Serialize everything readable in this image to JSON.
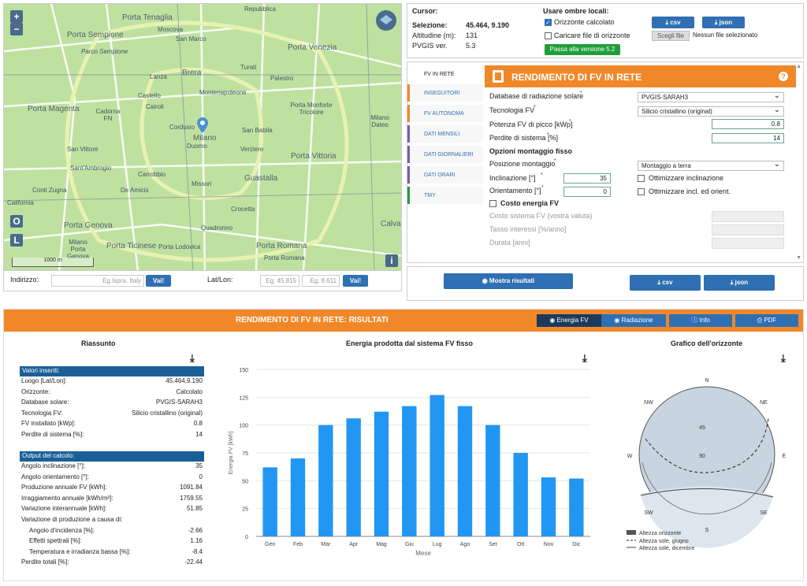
{
  "map": {
    "labels": [
      {
        "t": "Porta Tenaglia",
        "c": "big"
      },
      {
        "t": "Repubblica"
      },
      {
        "t": "Porta Sempione",
        "c": "big"
      },
      {
        "t": "Moscova"
      },
      {
        "t": "San Marco"
      },
      {
        "t": "Porta Venezia",
        "c": "big"
      },
      {
        "t": "Parco Sempione"
      },
      {
        "t": "Brera",
        "c": "big"
      },
      {
        "t": "Turati"
      },
      {
        "t": "Palestro"
      },
      {
        "t": "Lanza"
      },
      {
        "t": "Castello"
      },
      {
        "t": "Montenapoleone"
      },
      {
        "t": "Porta Magenta",
        "c": "big"
      },
      {
        "t": "Cairoli"
      },
      {
        "t": "Cadorna FN"
      },
      {
        "t": "Porta Monforte Tricolore"
      },
      {
        "t": "Milano Dateo"
      },
      {
        "t": "Cordusio"
      },
      {
        "t": "Milano",
        "c": "big"
      },
      {
        "t": "Duomo"
      },
      {
        "t": "San Babila"
      },
      {
        "t": "San Vittore"
      },
      {
        "t": "Verziere"
      },
      {
        "t": "Porta Vittoria",
        "c": "big"
      },
      {
        "t": "Sant'Ambrogio"
      },
      {
        "t": "Carrobbio"
      },
      {
        "t": "Missori"
      },
      {
        "t": "Guastalla",
        "c": "big"
      },
      {
        "t": "Conti Zugna"
      },
      {
        "t": "De Amicis"
      },
      {
        "t": "California"
      },
      {
        "t": "Crocetta"
      },
      {
        "t": "Porta Genova",
        "c": "big"
      },
      {
        "t": "Quadronno"
      },
      {
        "t": "Calvai",
        "c": "big"
      },
      {
        "t": "Milano Porta Genova"
      },
      {
        "t": "Porta Ticinese",
        "c": "big"
      },
      {
        "t": "Porta Lodovica"
      },
      {
        "t": "Porta Romana",
        "c": "big"
      },
      {
        "t": "Porta Romana"
      }
    ],
    "scale": "1000 m",
    "btn_zoom_in": "+",
    "btn_zoom_out": "−",
    "btn_o": "O",
    "btn_l": "L",
    "btn_info": "i"
  },
  "address": {
    "label": "Indirizzo:",
    "placeholder": "Eg.Ispra, Italy",
    "go": "Vai!",
    "latlon_label": "Lat/Lon:",
    "lat_ph": "Eg. 45.815",
    "lon_ph": "Eg. 8.611",
    "go2": "Vai!"
  },
  "cursor": {
    "title": "Cursor:",
    "sel_label": "Selezione:",
    "sel_val": "45.464, 9.190",
    "alt_label": "Altitudine (m):",
    "alt_val": "131",
    "ver_label": "PVGIS ver.",
    "ver_val": "5.3"
  },
  "shadows": {
    "title": "Usare ombre locali:",
    "opt1": "Orizzonte calcolato",
    "opt2": "Caricare file di orizzonte",
    "csv": "csv",
    "json": "json",
    "choose": "Scegli file",
    "nofile": "Nessun file selezionato",
    "switch": "Passa alla versione 5.2"
  },
  "tabs": [
    "FV IN RETE",
    "INSEGUITORI",
    "FV AUTONOMA",
    "DATI MENSILI",
    "DATI GIORNALIERI",
    "DATI ORARI",
    "TMY"
  ],
  "calc": {
    "title": "RENDIMENTO DI FV IN RETE",
    "help": "?",
    "db_label": "Database di radiazione solare",
    "db_val": "PVGIS-SARAH3",
    "tech_label": "Tecnologia FV",
    "tech_val": "Silicio cristallino (original)",
    "peak_label": "Potenza FV di picco [kWp]",
    "peak_val": "0.8",
    "loss_label": "Perdite di sistema [%]",
    "loss_val": "14",
    "mount_title": "Opzioni montaggio fisso",
    "pos_label": "Posizione montaggio",
    "pos_val": "Montaggio a terra",
    "incl_label": "Inclinazione [°]",
    "incl_val": "35",
    "opt_incl": "Ottimizzare inclinazione",
    "orient_label": "Orientamento [°]",
    "orient_val": "0",
    "opt_both": "Ottimizzare incl. ed orient.",
    "cost_label": "Costo energia FV",
    "cost1": "Costo sistema FV (vostra valuta)",
    "cost2": "Tasso interessi [%/anno]",
    "cost3": "Durata [anni]"
  },
  "actions": {
    "show": "Mostra risultati",
    "csv": "csv",
    "json": "json"
  },
  "results": {
    "title": "RENDIMENTO DI FV IN RETE: RISULTATI",
    "btn_energy": "Energia FV",
    "btn_rad": "Radiazione",
    "btn_info": "Info",
    "btn_pdf": "PDF",
    "summary_title": "Riassunto",
    "chart_title": "Energia prodotta dal sistema FV fisso",
    "horizon_title": "Grafico dell'orizzonte",
    "inputs_hdr": "Valori inseriti:",
    "inputs": [
      {
        "k": "Luogo [Lat/Lon]:",
        "v": "45.464,9.190"
      },
      {
        "k": "Orizzonte:",
        "v": "Calcolato"
      },
      {
        "k": "Database solare:",
        "v": "PVGIS-SARAH3"
      },
      {
        "k": "Tecnologia FV:",
        "v": "Silicio cristallino (original)"
      },
      {
        "k": "FV installato [kWp]:",
        "v": "0.8"
      },
      {
        "k": "Perdite di sistema [%]:",
        "v": "14"
      }
    ],
    "outputs_hdr": "Output del calcolo:",
    "outputs": [
      {
        "k": "Angolo inclinazione [°]:",
        "v": "35"
      },
      {
        "k": "Angolo orientamento [°]:",
        "v": "0"
      },
      {
        "k": "Produzione annuale FV [kWh]:",
        "v": "1091.84"
      },
      {
        "k": "Irraggiamento annuale [kWh/m²]:",
        "v": "1759.55"
      },
      {
        "k": "Variazione interannuale [kWh]:",
        "v": "51.85"
      },
      {
        "k": "Variazione di produzione a causa di:",
        "v": ""
      },
      {
        "k": "Angolo d'incidenza [%]:",
        "v": "-2.66",
        "indent": true
      },
      {
        "k": "Effetti spettrali [%]:",
        "v": "1.16",
        "indent": true
      },
      {
        "k": "Temperatura e irradianza bassa [%]:",
        "v": "-8.4",
        "indent": true
      },
      {
        "k": "Perdite totali [%]:",
        "v": "-22.44"
      }
    ],
    "horizon_legend": [
      "Altezza orizzonte",
      "Altezza sole, giugno",
      "Altezza sole, dicembre"
    ],
    "compass": {
      "N": "N",
      "NE": "NE",
      "E": "E",
      "SE": "SE",
      "S": "S",
      "SW": "SW",
      "W": "W",
      "NW": "NW",
      "r45": "45",
      "r90": "90"
    }
  },
  "chart_data": {
    "type": "bar",
    "title": "Energia prodotta dal sistema FV fisso",
    "xlabel": "Mese",
    "ylabel": "Energia FV [kWh]",
    "categories": [
      "Gen",
      "Feb",
      "Mar",
      "Apr",
      "Mag",
      "Giu",
      "Lug",
      "Ago",
      "Set",
      "Ott",
      "Nov",
      "Dic"
    ],
    "values": [
      62,
      70,
      100,
      106,
      112,
      117,
      127,
      117,
      100,
      75,
      53,
      52
    ],
    "ylim": [
      0,
      150
    ],
    "yticks": [
      0,
      25,
      50,
      75,
      100,
      125,
      150
    ],
    "color": "#2196f3"
  },
  "colors": {
    "orange": "#f0882a",
    "blue": "#2f6fb3",
    "darkblue": "#1b5f99",
    "green": "#1f9e3a"
  }
}
